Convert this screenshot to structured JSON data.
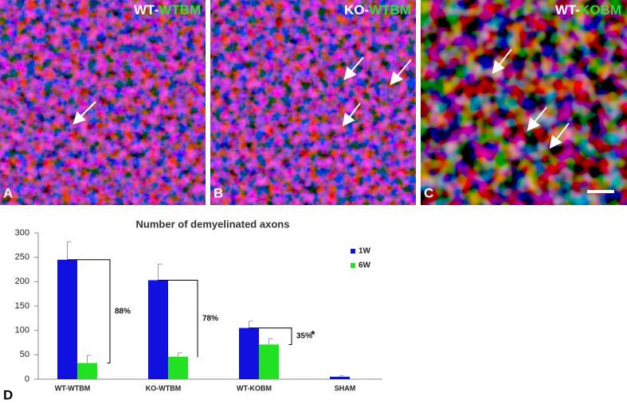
{
  "panels": [
    {
      "letter": "A",
      "prefix": "WT-",
      "suffix": "WTBM"
    },
    {
      "letter": "B",
      "prefix": "KO-",
      "suffix": "WTBM"
    },
    {
      "letter": "C",
      "prefix": "WT-",
      "suffix": "KOBM"
    }
  ],
  "chart_letter": "D",
  "chart_data": {
    "type": "bar",
    "title": "Number of demyelinated axons",
    "categories": [
      "WT-WTBM",
      "KO-WTBM",
      "WT-KOBM",
      "SHAM"
    ],
    "series": [
      {
        "name": "1W",
        "color": "#1010e0",
        "values": [
          245,
          203,
          105,
          5
        ],
        "errors": [
          37,
          33,
          14,
          2
        ]
      },
      {
        "name": "6W",
        "color": "#22e022",
        "values": [
          33,
          46,
          71,
          0
        ],
        "errors": [
          16,
          8,
          12,
          0
        ]
      }
    ],
    "annotations": [
      "88%",
      "78%",
      "35%",
      "*"
    ],
    "ylim": [
      0,
      300
    ],
    "yticks": [
      0,
      50,
      100,
      150,
      200,
      250,
      300
    ],
    "grid": false,
    "legend": "upper right"
  }
}
